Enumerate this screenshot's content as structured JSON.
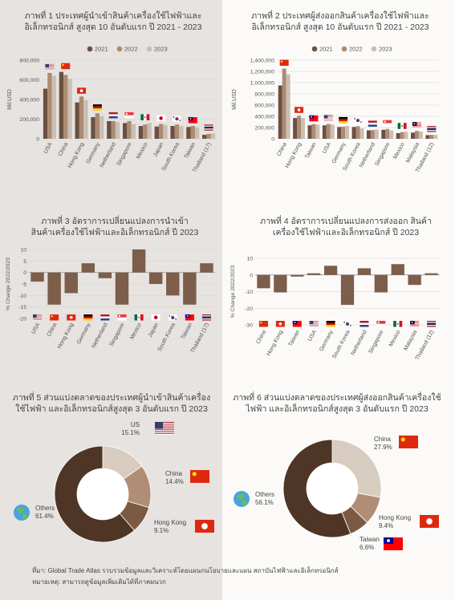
{
  "colors": {
    "y2021": "#6b5040",
    "y2022": "#ab8b73",
    "y2023": "#cbbfb3",
    "change": "#7d5e4a",
    "donut_top": [
      "#d7ccbf",
      "#b08e76",
      "#7b5a43",
      "#4f3525"
    ],
    "grid": "#d9d4cf",
    "axis_text": "#555"
  },
  "chart_data": [
    {
      "id": "c1",
      "type": "bar",
      "title": "ภาพที่ 1 ประเทศผู้นำเข้าสินค้าเครื่องใช้ไฟฟ้าและอิเล็กทรอนิกส์ สูงสุด 10 อันดับแรก ปี 2021 - 2023",
      "ylabel": "Mil.USD",
      "ylim": [
        0,
        800000
      ],
      "yticks": [
        "0",
        "200,000",
        "400,000",
        "600,000",
        "800,000"
      ],
      "legend": "top",
      "series_names": [
        "2021",
        "2022",
        "2023"
      ],
      "categories": [
        "USA",
        "China",
        "Hong Kong",
        "Germany",
        "Netherland",
        "Singapore",
        "Mexico",
        "Japan",
        "South Korea",
        "Taiwan",
        "Thailand (17)"
      ],
      "flags": [
        "us",
        "cn",
        "hk",
        "de",
        "nl",
        "sg",
        "mx",
        "jp",
        "kr",
        "tw",
        "th"
      ],
      "series": [
        {
          "name": "2021",
          "values": [
            510000,
            680000,
            370000,
            220000,
            180000,
            160000,
            130000,
            125000,
            130000,
            120000,
            40000
          ]
        },
        {
          "name": "2022",
          "values": [
            670000,
            650000,
            430000,
            260000,
            180000,
            180000,
            145000,
            150000,
            145000,
            130000,
            50000
          ]
        },
        {
          "name": "2023",
          "values": [
            640000,
            610000,
            390000,
            230000,
            170000,
            150000,
            160000,
            140000,
            130000,
            115000,
            55000
          ]
        }
      ]
    },
    {
      "id": "c2",
      "type": "bar",
      "title": "ภาพที่ 2 ประเทศผู้ส่งออกสินค้าเครื่องใช้ไฟฟ้าและอิเล็กทรอนิกส์ สูงสุด 10 อันดับแรก ปี 2021 - 2023",
      "ylabel": "Mil.USD",
      "ylim": [
        0,
        1400000
      ],
      "yticks": [
        "0",
        "200,000",
        "400,000",
        "600,000",
        "800,000",
        "1,000,000",
        "1,200,000",
        "1,400,000"
      ],
      "legend": "top",
      "series_names": [
        "2021",
        "2022",
        "2023"
      ],
      "categories": [
        "China",
        "Hong Kong",
        "Taiwan",
        "USA",
        "Germany",
        "South Korea",
        "Netherland",
        "Singapore",
        "Mexico",
        "Malaysia",
        "Thailand (12)"
      ],
      "flags": [
        "cn",
        "hk",
        "tw",
        "us",
        "de",
        "kr",
        "nl",
        "sg",
        "mx",
        "my",
        "th"
      ],
      "series": [
        {
          "name": "2021",
          "values": [
            950000,
            370000,
            240000,
            240000,
            210000,
            210000,
            150000,
            160000,
            100000,
            110000,
            65000
          ]
        },
        {
          "name": "2022",
          "values": [
            1250000,
            410000,
            260000,
            265000,
            215000,
            225000,
            155000,
            175000,
            120000,
            140000,
            70000
          ]
        },
        {
          "name": "2023",
          "values": [
            1150000,
            370000,
            250000,
            255000,
            230000,
            185000,
            165000,
            150000,
            125000,
            130000,
            70000
          ]
        }
      ]
    },
    {
      "id": "c3",
      "type": "bar",
      "title": "ภาพที่ 3 อัตราการเปลี่ยนแปลงการนำเข้า สินค้าเครื่องใช้ไฟฟ้าและอิเล็กทรอนิกส์ ปี 2023",
      "ylabel": "% Change 2022/2023",
      "ylim": [
        -20,
        10
      ],
      "yticks": [
        "-20",
        "-15",
        "-10",
        "-5",
        "0",
        "5",
        "10"
      ],
      "categories": [
        "USA",
        "China",
        "Hong Kong",
        "Germany",
        "Netherland",
        "Singapore",
        "Mexico",
        "Japan",
        "South Korea",
        "Taiwan",
        "Thailand (17)"
      ],
      "flags": [
        "us",
        "cn",
        "hk",
        "de",
        "nl",
        "sg",
        "mx",
        "jp",
        "kr",
        "tw",
        "th"
      ],
      "values": [
        -4,
        -14,
        -9,
        4,
        -2.5,
        -14,
        10,
        -5,
        -10,
        -14,
        4
      ]
    },
    {
      "id": "c4",
      "type": "bar",
      "title": "ภาพที่ 4 อัตราการเปลี่ยนแปลงการส่งออก สินค้าเครื่องใช้ไฟฟ้าและอิเล็กทรอนิกส์ ปี 2023",
      "ylabel": "% Change 2022/2023",
      "ylim": [
        -30,
        10
      ],
      "yticks": [
        "-30",
        "-20",
        "-10",
        "0",
        "10"
      ],
      "categories": [
        "China",
        "Hong Kong",
        "Taiwan",
        "USA",
        "Germany",
        "South Korea",
        "Netherland",
        "Singapore",
        "Mexico",
        "Malaysia",
        "Thailand (12)"
      ],
      "flags": [
        "cn",
        "hk",
        "tw",
        "us",
        "de",
        "kr",
        "nl",
        "sg",
        "mx",
        "my",
        "th"
      ],
      "values": [
        -8,
        -10.5,
        -1,
        1,
        5.5,
        -18,
        4,
        -10.5,
        6.5,
        -6,
        1
      ]
    },
    {
      "id": "c5",
      "type": "pie",
      "title": "ภาพที่ 5 ส่วนแบ่งตลาดของประเทศผู้นำเข้าสินค้าเครื่องใช้ไฟฟ้า และอิเล็กทรอนิกส์สูงสุด 3 อันดับแรก ปี 2023",
      "slices": [
        {
          "label": "US",
          "pct": "15.1%",
          "value": 15.1,
          "flag": "us"
        },
        {
          "label": "China",
          "pct": "14.4%",
          "value": 14.4,
          "flag": "cn"
        },
        {
          "label": "Hong Kong",
          "pct": "9.1%",
          "value": 9.1,
          "flag": "hk"
        },
        {
          "label": "Others",
          "pct": "61.4%",
          "value": 61.4,
          "flag": "globe"
        }
      ]
    },
    {
      "id": "c6",
      "type": "pie",
      "title": "ภาพที่ 6 ส่วนแบ่งตลาดของประเทศผู้ส่งออกสินค้าเครื่องใช้ไฟฟ้า และอิเล็กทรอนิกส์สูงสุด 3 อันดับแรก ปี 2023",
      "slices": [
        {
          "label": "China",
          "pct": "27.9%",
          "value": 27.9,
          "flag": "cn"
        },
        {
          "label": "Hong Kong",
          "pct": "9.4%",
          "value": 9.4,
          "flag": "hk"
        },
        {
          "label": "Taiwan",
          "pct": "6.6%",
          "value": 6.6,
          "flag": "tw"
        },
        {
          "label": "Others",
          "pct": "56.1%",
          "value": 56.1,
          "flag": "globe"
        }
      ]
    }
  ],
  "footer": {
    "source": "ที่มา: Global Trade Atlas รวบรวมข้อมูลและวิเคราะห์โดยแผนกนโยบายและแผน สถาบันไฟฟ้าและอิเล็กทรอนิกส์",
    "note": "หมายเหตุ: สามารถดูข้อมูลเพิ่มเติมได้ที่ภาคผนวก"
  }
}
